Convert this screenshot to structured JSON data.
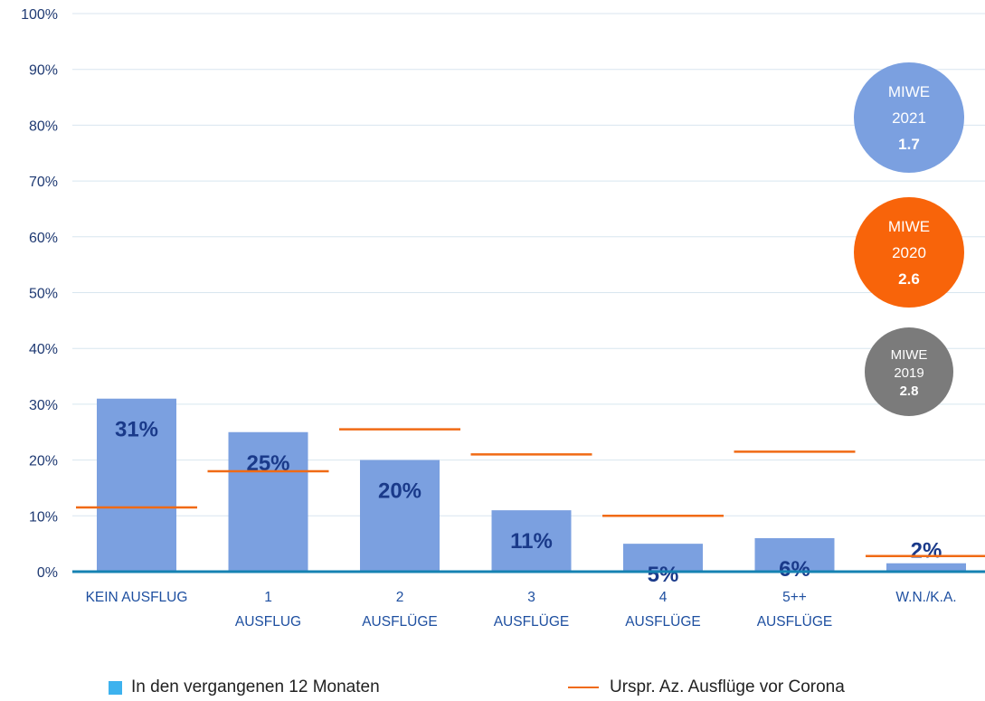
{
  "chart_data": {
    "type": "bar",
    "categories": [
      [
        "KEIN AUSFLUG"
      ],
      [
        "1",
        "AUSFLUG"
      ],
      [
        "2",
        "AUSFLÜGE"
      ],
      [
        "3",
        "AUSFLÜGE"
      ],
      [
        "4",
        "AUSFLÜGE"
      ],
      [
        "5++",
        "AUSFLÜGE"
      ],
      [
        "W.N./K.A."
      ]
    ],
    "ylim": [
      0,
      100
    ],
    "yticks": [
      "0%",
      "10%",
      "20%",
      "30%",
      "40%",
      "50%",
      "60%",
      "70%",
      "80%",
      "90%",
      "100%"
    ],
    "series": [
      {
        "name": "In den vergangenen 12 Monaten",
        "type": "bar",
        "values": [
          31,
          25,
          20,
          11,
          5,
          6,
          1.5
        ],
        "labels": [
          "31%",
          "25%",
          "20%",
          "11%",
          "5%",
          "6%",
          "2%"
        ],
        "color": "#7ba0e0"
      },
      {
        "name": "Urspr. Az. Ausflüge vor Corona",
        "type": "marker-line",
        "values": [
          11.5,
          18,
          25.5,
          21,
          10,
          21.5,
          2.8
        ],
        "color": "#f06a14"
      }
    ],
    "grid": true,
    "legend_position": "bottom",
    "annotations": [
      {
        "lines": [
          "MIWE",
          "2021",
          "1.7"
        ],
        "color": "#7ba0e0"
      },
      {
        "lines": [
          "MIWE",
          "2020",
          "2.6"
        ],
        "color": "#f8640a"
      },
      {
        "lines": [
          "MIWE",
          "2019",
          "2.8"
        ],
        "color": "#7b7b7b"
      }
    ]
  }
}
